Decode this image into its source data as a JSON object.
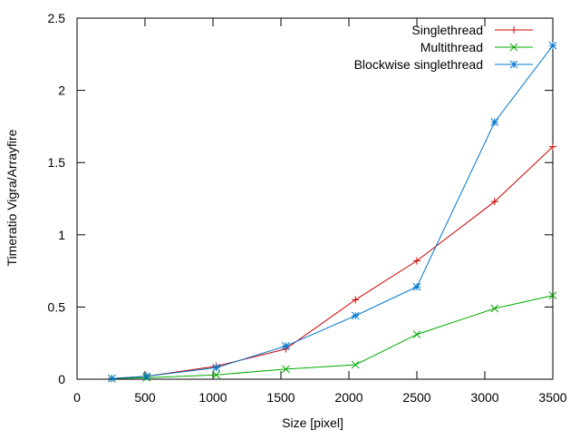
{
  "chart_data": {
    "type": "line",
    "title": "",
    "xlabel": "Size [pixel]",
    "ylabel": "Timeratio Vigra/Arrayfire",
    "xlim": [
      0,
      3500
    ],
    "ylim": [
      0,
      2.5
    ],
    "xticks": [
      0,
      500,
      1000,
      1500,
      2000,
      2500,
      3000,
      3500
    ],
    "yticks": [
      0,
      0.5,
      1,
      1.5,
      2,
      2.5
    ],
    "xtick_labels": [
      "0",
      "500",
      "1000",
      "1500",
      "2000",
      "2500",
      "3000",
      "3500"
    ],
    "ytick_labels": [
      "0",
      "0.5",
      "1",
      "1.5",
      "2",
      "2.5"
    ],
    "grid": false,
    "legend_position": "top-right",
    "series": [
      {
        "name": "Singlethread",
        "color": "#cc0000",
        "marker": "plus",
        "x": [
          256,
          512,
          1024,
          1536,
          2048,
          2500,
          3072,
          3500
        ],
        "y": [
          0.005,
          0.02,
          0.09,
          0.21,
          0.55,
          0.82,
          1.23,
          1.61
        ]
      },
      {
        "name": "Multithread",
        "color": "#00aa00",
        "marker": "cross",
        "x": [
          256,
          512,
          1024,
          1536,
          2048,
          2500,
          3072,
          3500
        ],
        "y": [
          0.005,
          0.01,
          0.03,
          0.07,
          0.1,
          0.31,
          0.49,
          0.58
        ]
      },
      {
        "name": "Blockwise singlethread",
        "color": "#0077cc",
        "marker": "star",
        "x": [
          256,
          512,
          1024,
          1536,
          2048,
          2500,
          3072,
          3500
        ],
        "y": [
          0.005,
          0.02,
          0.08,
          0.23,
          0.44,
          0.64,
          1.78,
          2.31
        ]
      }
    ]
  }
}
